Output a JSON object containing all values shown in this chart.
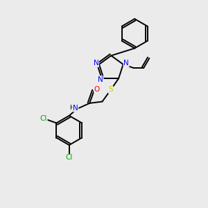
{
  "background_color": "#ebebeb",
  "bond_color": "#000000",
  "atom_colors": {
    "N": "#0000ff",
    "S": "#cccc00",
    "O": "#ff0000",
    "Cl": "#00aa00",
    "C": "#000000",
    "H": "#000000"
  },
  "figsize": [
    3.0,
    3.0
  ],
  "dpi": 100
}
